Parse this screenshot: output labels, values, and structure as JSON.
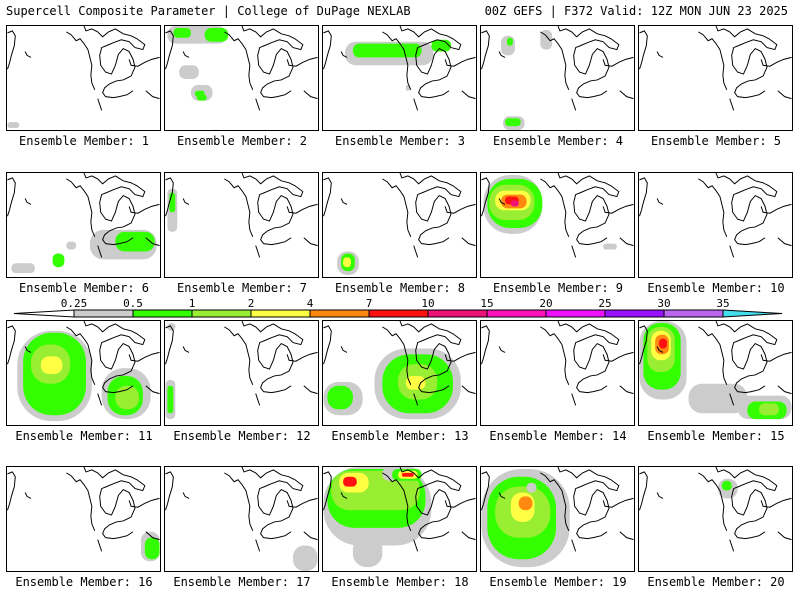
{
  "header": {
    "left": "Supercell Composite Parameter | College of DuPage NEXLAB",
    "right": "00Z GEFS | F372 Valid: 12Z MON JUN 23 2025"
  },
  "colorbar": {
    "ticks": [
      "0.25",
      "0.5",
      "1",
      "2",
      "4",
      "7",
      "10",
      "15",
      "20",
      "25",
      "30",
      "35"
    ],
    "colors": [
      "#cccccc",
      "#33ff00",
      "#99ee33",
      "#ffff44",
      "#ff8811",
      "#ff1111",
      "#ee1177",
      "#ff11bb",
      "#ee11ff",
      "#9911ff",
      "#bb66ee",
      "#44ddee"
    ]
  },
  "panels": [
    {
      "label": "Ensemble Member: 1"
    },
    {
      "label": "Ensemble Member: 2"
    },
    {
      "label": "Ensemble Member: 3"
    },
    {
      "label": "Ensemble Member: 4"
    },
    {
      "label": "Ensemble Member: 5"
    },
    {
      "label": "Ensemble Member: 6"
    },
    {
      "label": "Ensemble Member: 7"
    },
    {
      "label": "Ensemble Member: 8"
    },
    {
      "label": "Ensemble Member: 9"
    },
    {
      "label": "Ensemble Member: 10"
    },
    {
      "label": "Ensemble Member: 11"
    },
    {
      "label": "Ensemble Member: 12"
    },
    {
      "label": "Ensemble Member: 13"
    },
    {
      "label": "Ensemble Member: 14"
    },
    {
      "label": "Ensemble Member: 15"
    },
    {
      "label": "Ensemble Member: 16"
    },
    {
      "label": "Ensemble Member: 17"
    },
    {
      "label": "Ensemble Member: 18"
    },
    {
      "label": "Ensemble Member: 19"
    },
    {
      "label": "Ensemble Member: 20"
    }
  ]
}
